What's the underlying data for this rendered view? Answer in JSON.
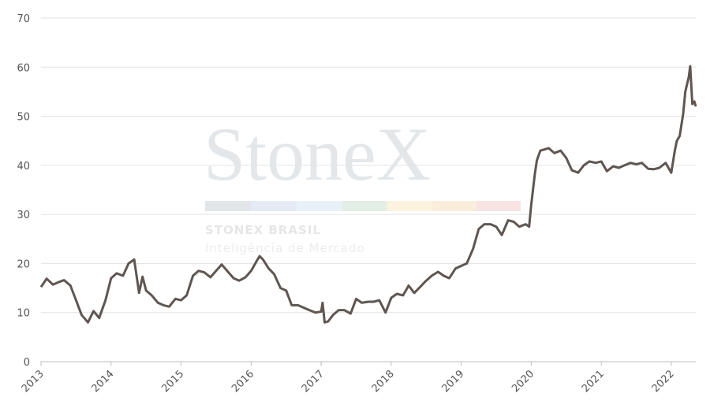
{
  "chart_data": {
    "type": "line",
    "watermark": {
      "brand": "StoneX",
      "company": "STONEX BRASIL",
      "tagline": "Inteligência de Mercado"
    },
    "x": [
      2013.0,
      2013.08,
      2013.17,
      2013.25,
      2013.33,
      2013.42,
      2013.5,
      2013.58,
      2013.67,
      2013.75,
      2013.83,
      2013.92,
      2014.0,
      2014.08,
      2014.17,
      2014.25,
      2014.33,
      2014.4,
      2014.45,
      2014.5,
      2014.58,
      2014.67,
      2014.75,
      2014.83,
      2014.92,
      2015.0,
      2015.08,
      2015.17,
      2015.25,
      2015.33,
      2015.42,
      2015.5,
      2015.58,
      2015.67,
      2015.75,
      2015.83,
      2015.92,
      2016.0,
      2016.08,
      2016.12,
      2016.17,
      2016.25,
      2016.33,
      2016.42,
      2016.5,
      2016.58,
      2016.67,
      2016.75,
      2016.83,
      2016.92,
      2017.0,
      2017.02,
      2017.05,
      2017.1,
      2017.17,
      2017.25,
      2017.33,
      2017.42,
      2017.5,
      2017.58,
      2017.67,
      2017.75,
      2017.83,
      2017.92,
      2018.0,
      2018.08,
      2018.17,
      2018.25,
      2018.33,
      2018.42,
      2018.5,
      2018.58,
      2018.67,
      2018.75,
      2018.83,
      2018.92,
      2019.0,
      2019.08,
      2019.17,
      2019.25,
      2019.33,
      2019.42,
      2019.5,
      2019.58,
      2019.67,
      2019.75,
      2019.83,
      2019.92,
      2019.97,
      2020.0,
      2020.05,
      2020.08,
      2020.13,
      2020.25,
      2020.33,
      2020.42,
      2020.5,
      2020.58,
      2020.67,
      2020.75,
      2020.83,
      2020.92,
      2021.0,
      2021.08,
      2021.17,
      2021.25,
      2021.33,
      2021.42,
      2021.5,
      2021.58,
      2021.67,
      2021.75,
      2021.83,
      2021.92,
      2022.0,
      2022.05,
      2022.08,
      2022.12,
      2022.17,
      2022.2,
      2022.25,
      2022.27,
      2022.3,
      2022.33,
      2022.35
    ],
    "series": [
      {
        "color": "#5f5651",
        "values": [
          15.2,
          16.9,
          15.7,
          16.2,
          16.6,
          15.5,
          12.5,
          9.5,
          8.0,
          10.3,
          8.9,
          12.5,
          17.0,
          18.0,
          17.5,
          20.0,
          20.8,
          14.0,
          17.3,
          14.5,
          13.5,
          12.0,
          11.5,
          11.2,
          12.8,
          12.5,
          13.5,
          17.5,
          18.5,
          18.2,
          17.2,
          18.5,
          19.8,
          18.3,
          17.0,
          16.5,
          17.2,
          18.5,
          20.5,
          21.5,
          20.8,
          19.0,
          17.8,
          15.0,
          14.5,
          11.5,
          11.5,
          11.0,
          10.5,
          10.0,
          10.2,
          12.0,
          8.0,
          8.2,
          9.5,
          10.5,
          10.5,
          9.8,
          12.8,
          12.0,
          12.2,
          12.2,
          12.5,
          10.0,
          13.0,
          13.8,
          13.5,
          15.5,
          14.0,
          15.3,
          16.5,
          17.5,
          18.3,
          17.5,
          17.0,
          19.0,
          19.5,
          20.0,
          23.0,
          27.0,
          28.0,
          28.0,
          27.5,
          25.8,
          28.8,
          28.5,
          27.5,
          28.0,
          27.5,
          32.0,
          38.0,
          41.0,
          43.0,
          43.5,
          42.5,
          43.0,
          41.5,
          39.0,
          38.5,
          40.0,
          40.8,
          40.5,
          40.8,
          38.8,
          39.8,
          39.5,
          40.0,
          40.5,
          40.2,
          40.5,
          39.3,
          39.2,
          39.5,
          40.5,
          38.5,
          43.0,
          45.0,
          46.0,
          50.5,
          55.0,
          58.0,
          60.2,
          52.5,
          53.0,
          52.0
        ]
      }
    ],
    "xlim": [
      2013,
      2022.35
    ],
    "xticks": [
      2013,
      2014,
      2015,
      2016,
      2017,
      2018,
      2019,
      2020,
      2021,
      2022
    ],
    "ylim": [
      0,
      70
    ],
    "yticks": [
      0,
      10,
      20,
      30,
      40,
      50,
      60,
      70
    ],
    "grid": true
  }
}
